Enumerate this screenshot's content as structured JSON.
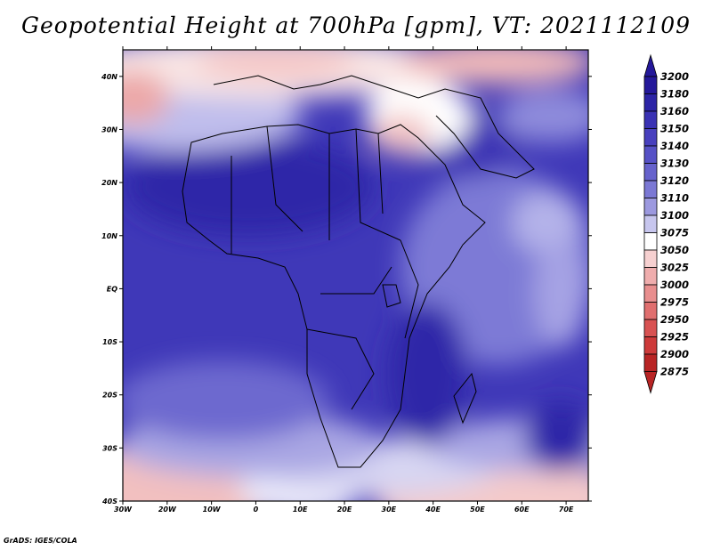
{
  "title": "Geopotential Height at 700hPa [gpm], VT: 2021112109",
  "credit": "GrADS: IGES/COLA",
  "map": {
    "lat_labels": [
      "40N",
      "30N",
      "20N",
      "10N",
      "EQ",
      "10S",
      "20S",
      "30S",
      "40S"
    ],
    "lon_labels": [
      "30W",
      "20W",
      "10W",
      "0",
      "10E",
      "20E",
      "30E",
      "40E",
      "50E",
      "60E",
      "70E"
    ],
    "lat_range": [
      -40,
      45
    ],
    "lon_range": [
      -30,
      75
    ]
  },
  "colorbar": {
    "levels": [
      "3200",
      "3180",
      "3160",
      "3150",
      "3140",
      "3130",
      "3120",
      "3110",
      "3100",
      "3075",
      "3050",
      "3025",
      "3000",
      "2975",
      "2950",
      "2925",
      "2900",
      "2875"
    ],
    "colors": [
      "#24189a",
      "#2c24a6",
      "#3a32b4",
      "#4840be",
      "#5651c6",
      "#6662cc",
      "#7b78d4",
      "#9c99df",
      "#c7c6ee",
      "#ffffff",
      "#f6d0d0",
      "#efadad",
      "#e88e8e",
      "#e06f6f",
      "#d85252",
      "#cd3a3a",
      "#b82424"
    ]
  }
}
